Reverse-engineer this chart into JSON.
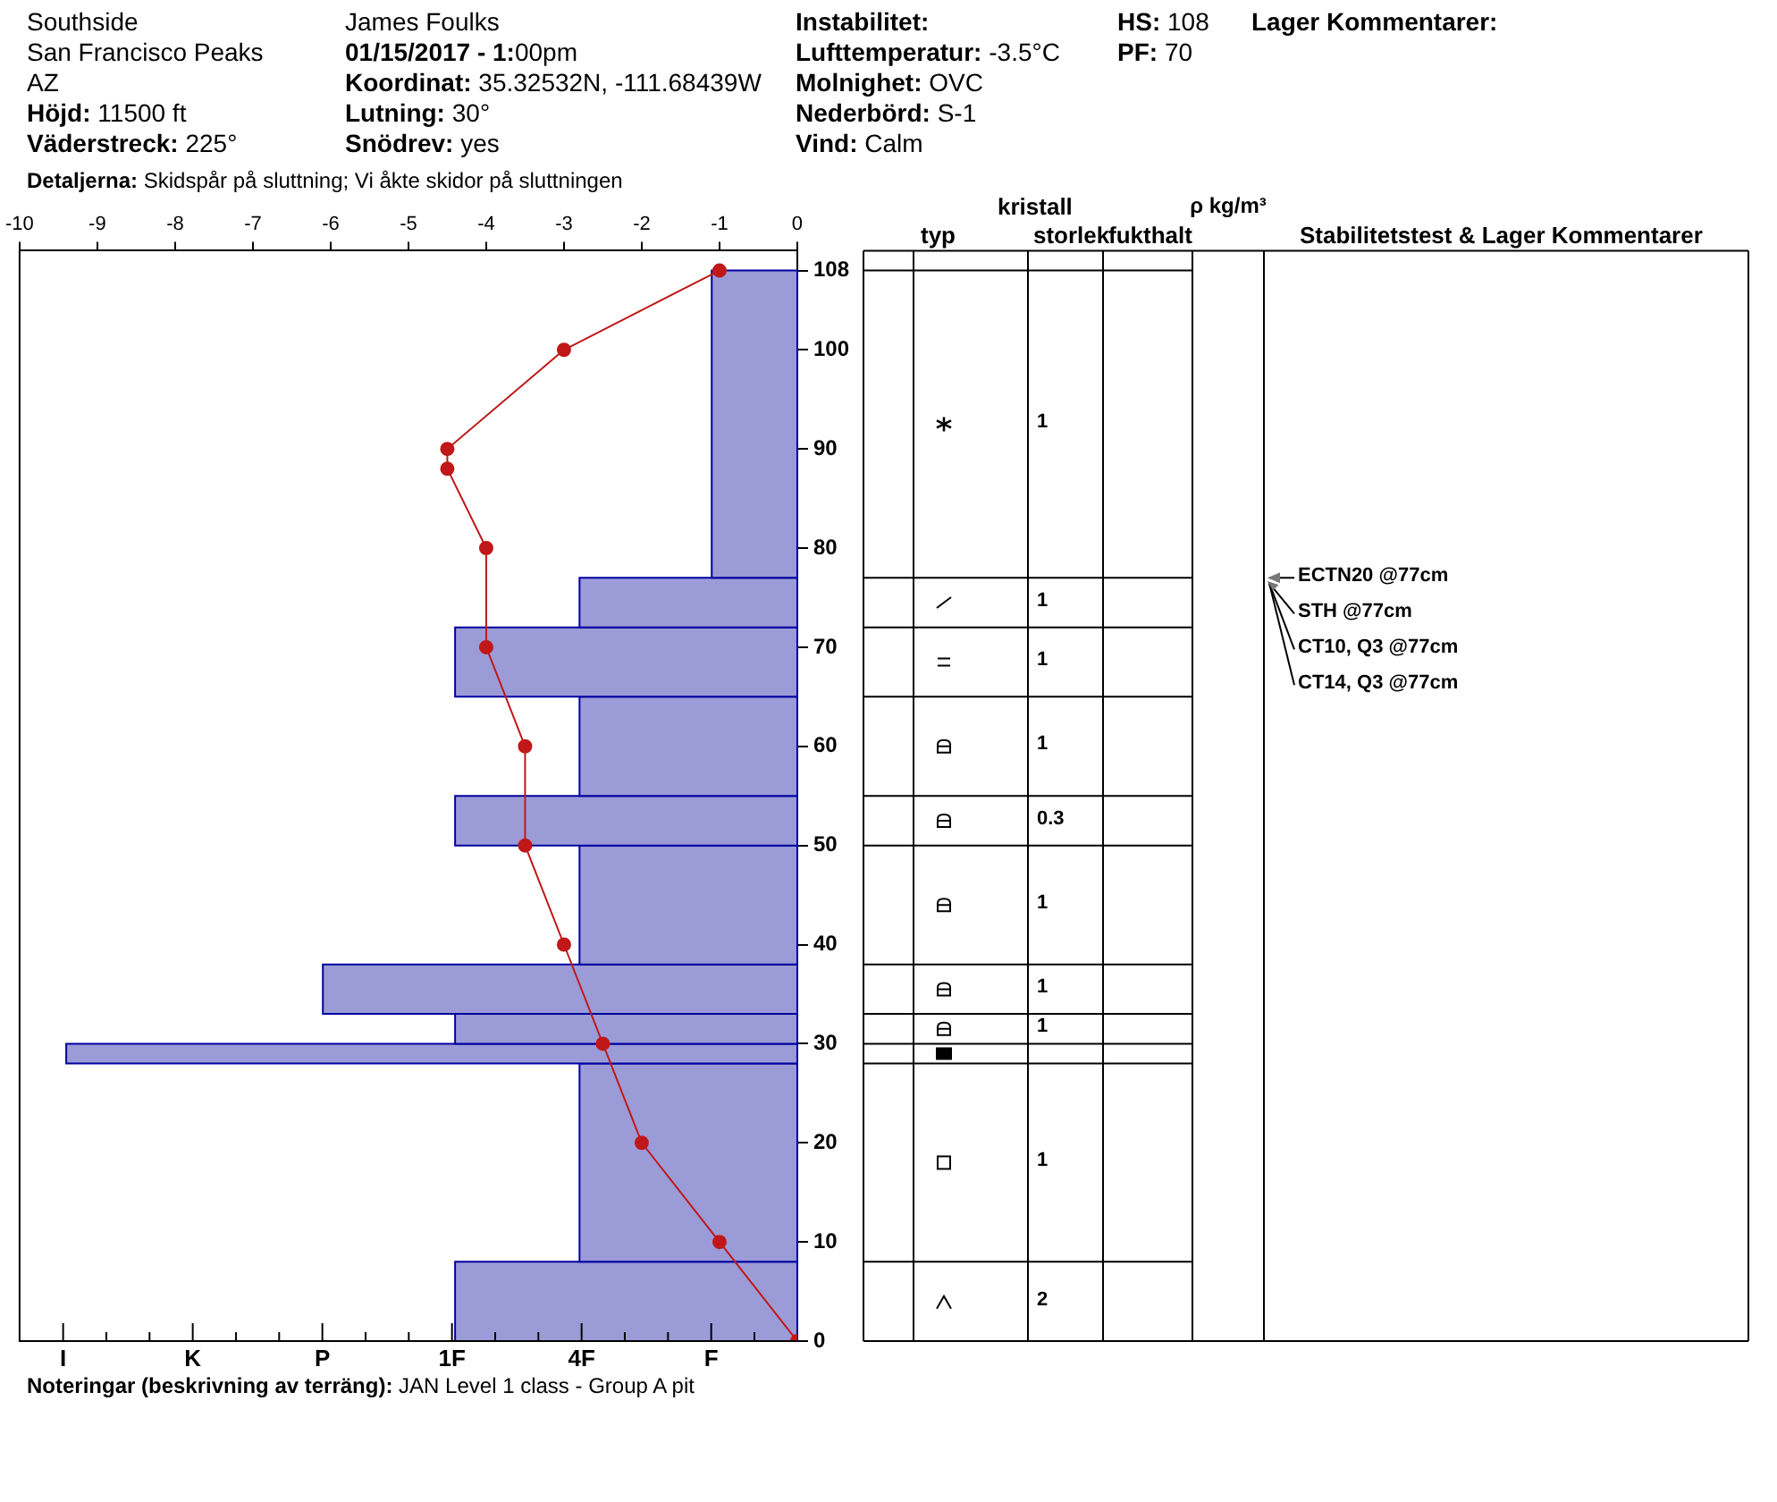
{
  "chart_data": {
    "type": "histogram",
    "orientation": "horizontal",
    "bins": [
      0,
      8,
      28,
      30,
      33,
      38,
      50,
      55,
      65,
      72,
      77,
      108
    ],
    "series": [
      {
        "color": "#9b9bd7",
        "values": [
          -4.4,
          -2.8,
          -9.4,
          -4.4,
          -6.1,
          -2.8,
          -4.4,
          -2.8,
          -4.4,
          -2.8,
          -1.1
        ]
      },
      {
        "type": "line",
        "color": "#c01818",
        "marker": "circle",
        "x": [
          0,
          10,
          20,
          30,
          40,
          50,
          60,
          70,
          80,
          88,
          90,
          100,
          108
        ],
        "values": [
          0,
          -1,
          -2,
          -2.5,
          -3,
          -3.5,
          -3.5,
          -4,
          -4,
          -4.5,
          -4.5,
          -3,
          -1
        ]
      }
    ],
    "xlim": [
      -10,
      0
    ],
    "xticks": [
      -10,
      -9,
      -8,
      -7,
      -6,
      -5,
      -4,
      -3,
      -2,
      -1,
      0
    ],
    "ylim": [
      0,
      110
    ],
    "yticks": [
      0,
      10,
      20,
      30,
      40,
      50,
      60,
      70,
      80,
      90,
      100,
      108
    ],
    "grid": false,
    "annotations": [
      "Southside",
      "San Francisco Peaks",
      "AZ",
      "Höjd: 11500 ft",
      "Väderstreck: 225°",
      "James Foulks",
      "01/15/2017 - 1:00pm",
      "Koordinat: 35.32532N, -111.68439W",
      "Lutning: 30°",
      "Snödrev: yes",
      "Instabilitet:",
      "Lufttemperatur: -3.5°C",
      "Molnighet: OVC",
      "Nederbörd: S-1",
      "Vind: Calm",
      "HS: 108",
      "PF: 70",
      "Lager Kommentarer:",
      "Detaljerna: Skidspår på sluttning; Vi åkte skidor på sluttningen",
      "Noteringar (beskrivning av terräng): JAN Level 1 class - Group A pit",
      "typ",
      "kristall",
      "storlek",
      "fukthalt",
      "ρ kg/m³",
      "Stabilitetstest & Lager Kommentarer",
      "1",
      "1",
      "1",
      "1",
      "0.3",
      "1",
      "1",
      "1",
      "1",
      "2",
      "ECTN20 @77cm",
      "STH @77cm",
      "CT10, Q3 @77cm",
      "CT14, Q3 @77cm",
      "I",
      "K",
      "P",
      "1F",
      "4F",
      "F"
    ]
  }
}
